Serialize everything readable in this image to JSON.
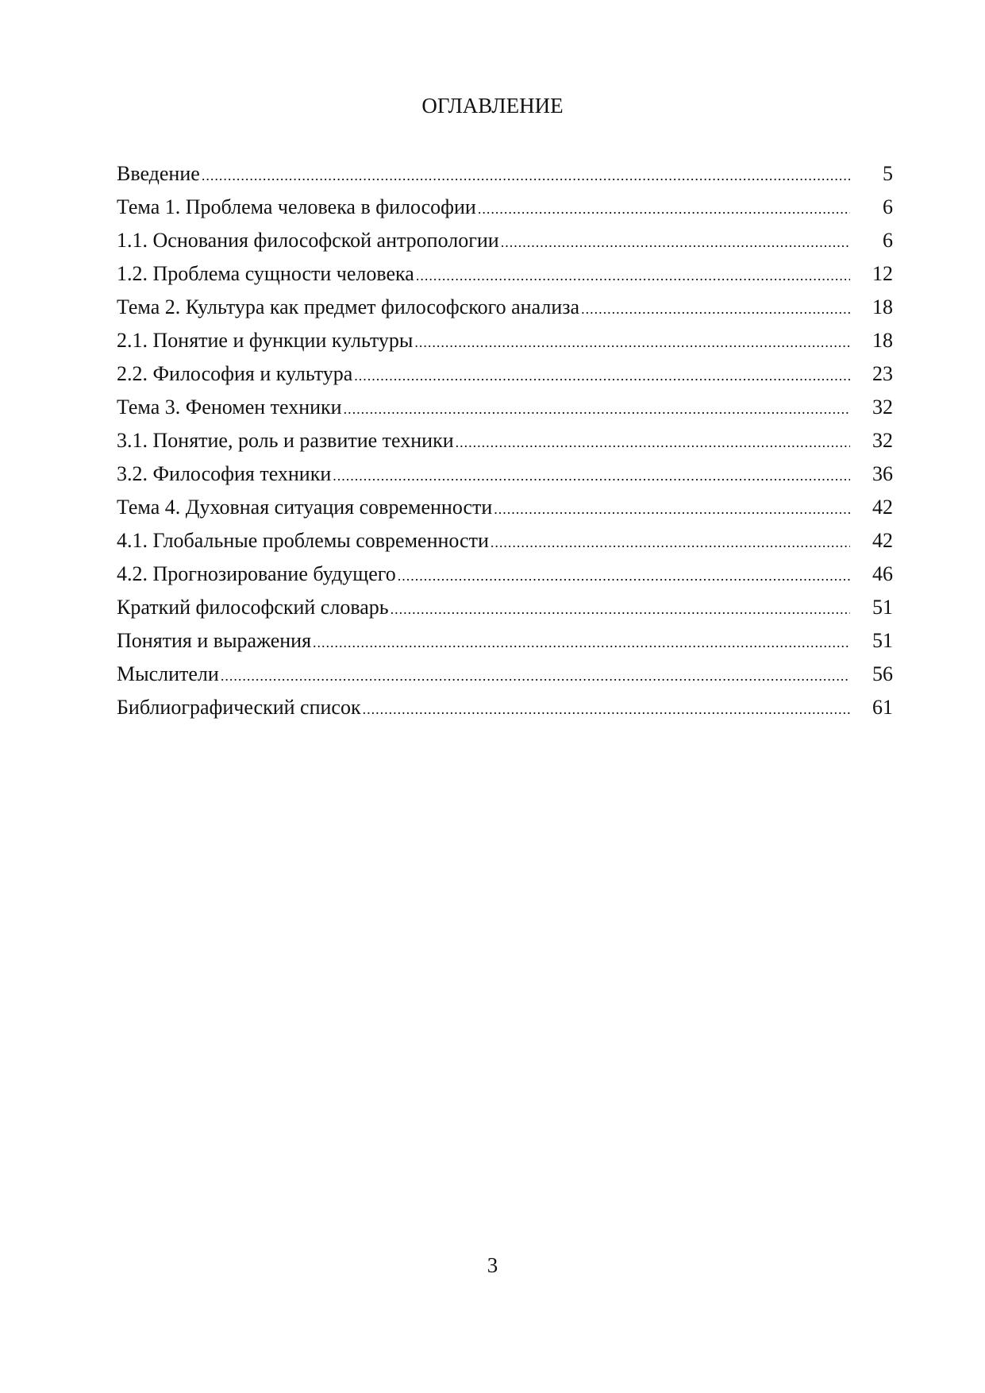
{
  "title": "ОГЛАВЛЕНИЕ",
  "entries": [
    {
      "label": "Введение",
      "page": "5"
    },
    {
      "label": "Тема 1. Проблема человека в философии",
      "page": "6"
    },
    {
      "label": "1.1. Основания философской антропологии",
      "page": "6"
    },
    {
      "label": "1.2. Проблема сущности человека",
      "page": "12"
    },
    {
      "label": "Тема 2. Культура как предмет философского анализа",
      "page": "18"
    },
    {
      "label": "2.1. Понятие и функции культуры",
      "page": "18"
    },
    {
      "label": "2.2. Философия и культура",
      "page": "23"
    },
    {
      "label": "Тема 3. Феномен техники",
      "page": "32"
    },
    {
      "label": "3.1. Понятие, роль и развитие техники",
      "page": "32"
    },
    {
      "label": "3.2. Философия техники",
      "page": "36"
    },
    {
      "label": "Тема 4. Духовная ситуация современности",
      "page": "42"
    },
    {
      "label": "4.1. Глобальные проблемы современности",
      "page": "42"
    },
    {
      "label": "4.2. Прогнозирование будущего",
      "page": "46"
    },
    {
      "label": "Краткий философский словарь",
      "page": "51"
    },
    {
      "label": "Понятия и выражения",
      "page": "51"
    },
    {
      "label": "Мыслители",
      "page": "56"
    },
    {
      "label": "Библиографический список",
      "page": "61"
    }
  ],
  "page_number": "3"
}
